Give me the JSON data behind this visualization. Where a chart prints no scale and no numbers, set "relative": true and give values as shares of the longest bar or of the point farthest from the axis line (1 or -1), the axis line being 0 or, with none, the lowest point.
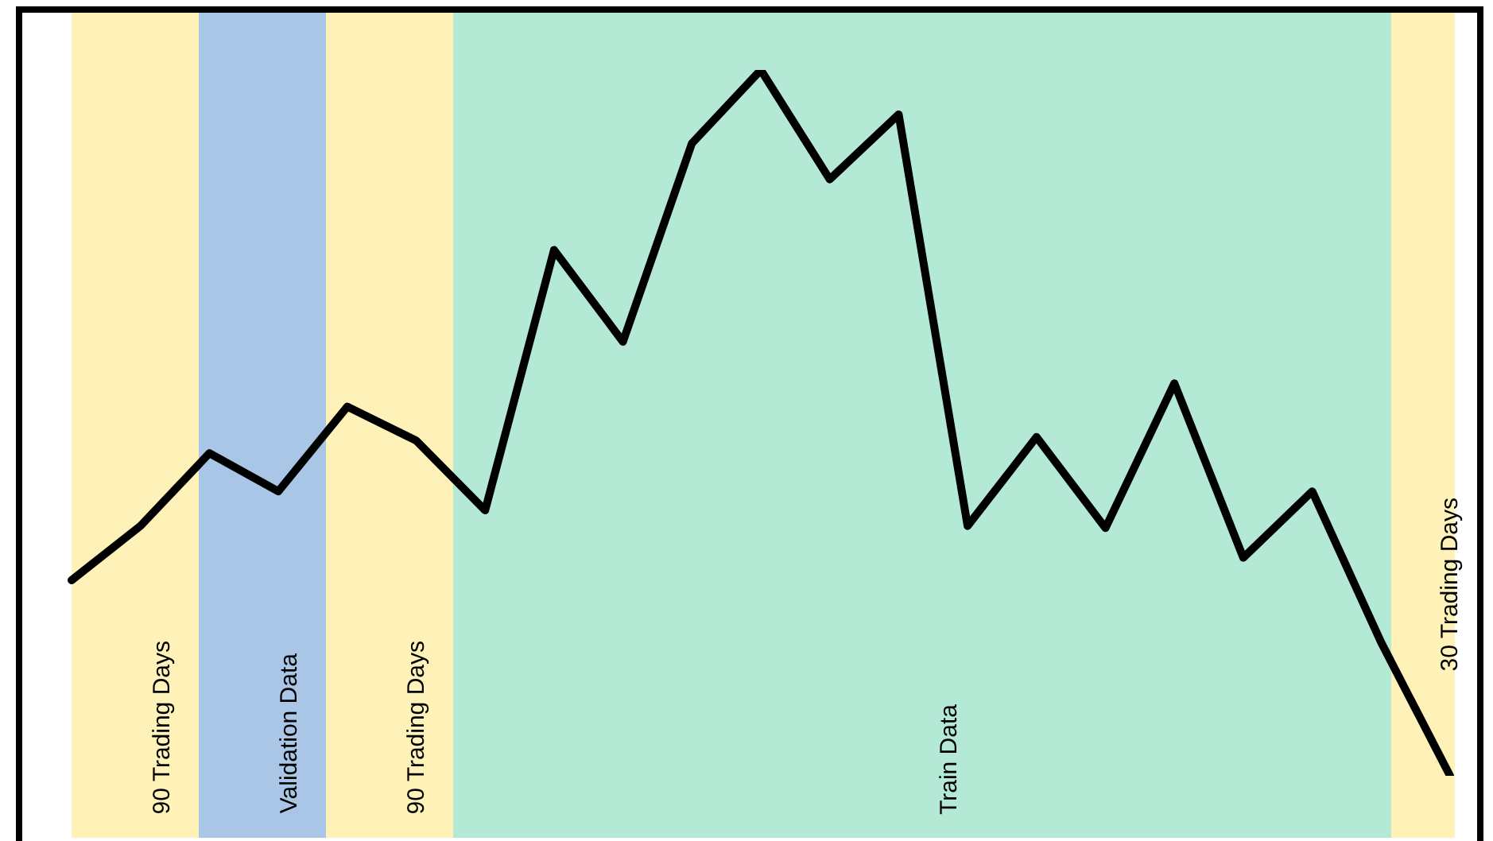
{
  "chart_data": {
    "type": "line",
    "relative": true,
    "categories": [
      null,
      null,
      null,
      null,
      null,
      null,
      null,
      null,
      null,
      null,
      null,
      null,
      null,
      null,
      null,
      null,
      null,
      null,
      null,
      null,
      null
    ],
    "color": "#000000",
    "values": [
      0.277,
      0.354,
      0.457,
      0.403,
      0.523,
      0.475,
      0.376,
      0.745,
      0.615,
      0.896,
      1,
      0.845,
      0.937,
      0.354,
      0.48,
      0.351,
      0.556,
      0.309,
      0.403,
      0.189,
      0
    ],
    "annotations": [
      "90 Trading Days",
      "Validation Data",
      "90 Trading Days",
      "Train Data",
      "30 Trading Days"
    ]
  }
}
